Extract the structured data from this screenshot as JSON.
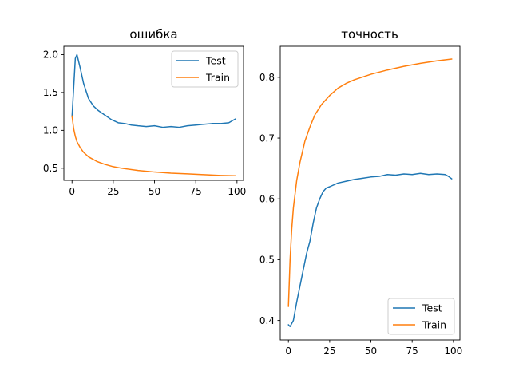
{
  "colors": {
    "test": "#1f77b4",
    "train": "#ff7f0e"
  },
  "chart_data": [
    {
      "type": "line",
      "title": "ошибка",
      "xlabel": "",
      "ylabel": "",
      "xlim": [
        -4.95,
        103.95
      ],
      "ylim": [
        0.34,
        2.11
      ],
      "xticks": [
        0,
        25,
        50,
        75,
        100
      ],
      "yticks": [
        0.5,
        1.0,
        1.5,
        2.0
      ],
      "xtick_labels": [
        "0",
        "25",
        "50",
        "75",
        "100"
      ],
      "ytick_labels": [
        "0.5",
        "1.0",
        "1.5",
        "2.0"
      ],
      "grid": false,
      "legend_placement": "upper right",
      "series": [
        {
          "name": "Test",
          "color": "#1f77b4",
          "x": [
            0,
            2,
            3,
            5,
            7,
            10,
            13,
            16,
            20,
            24,
            28,
            32,
            36,
            40,
            45,
            50,
            55,
            60,
            65,
            70,
            75,
            80,
            85,
            90,
            95,
            99
          ],
          "y": [
            1.18,
            1.95,
            2.0,
            1.82,
            1.62,
            1.42,
            1.32,
            1.26,
            1.2,
            1.14,
            1.1,
            1.09,
            1.07,
            1.06,
            1.05,
            1.06,
            1.04,
            1.05,
            1.04,
            1.06,
            1.07,
            1.08,
            1.09,
            1.09,
            1.1,
            1.15
          ]
        },
        {
          "name": "Train",
          "color": "#ff7f0e",
          "x": [
            0,
            1,
            2,
            3,
            5,
            7,
            10,
            15,
            20,
            25,
            30,
            40,
            50,
            60,
            70,
            80,
            90,
            99
          ],
          "y": [
            1.19,
            1.02,
            0.92,
            0.85,
            0.77,
            0.71,
            0.65,
            0.59,
            0.55,
            0.52,
            0.5,
            0.47,
            0.45,
            0.435,
            0.425,
            0.415,
            0.405,
            0.4
          ]
        }
      ]
    },
    {
      "type": "line",
      "title": "точность",
      "xlabel": "",
      "ylabel": "",
      "xlim": [
        -4.95,
        103.95
      ],
      "ylim": [
        0.368,
        0.851
      ],
      "xticks": [
        0,
        25,
        50,
        75,
        100
      ],
      "yticks": [
        0.4,
        0.5,
        0.6,
        0.7,
        0.8
      ],
      "xtick_labels": [
        "0",
        "25",
        "50",
        "75",
        "100"
      ],
      "ytick_labels": [
        "0.4",
        "0.5",
        "0.6",
        "0.7",
        "0.8"
      ],
      "grid": false,
      "legend_placement": "lower right",
      "series": [
        {
          "name": "Test",
          "color": "#1f77b4",
          "x": [
            0,
            1,
            3,
            5,
            8,
            11,
            13,
            15,
            17,
            19,
            21,
            23,
            25,
            30,
            35,
            40,
            45,
            50,
            55,
            60,
            65,
            70,
            75,
            80,
            85,
            90,
            95,
            97,
            99
          ],
          "y": [
            0.393,
            0.39,
            0.4,
            0.43,
            0.47,
            0.51,
            0.53,
            0.56,
            0.585,
            0.6,
            0.612,
            0.618,
            0.62,
            0.626,
            0.629,
            0.632,
            0.634,
            0.636,
            0.637,
            0.64,
            0.639,
            0.641,
            0.64,
            0.642,
            0.64,
            0.641,
            0.64,
            0.637,
            0.633
          ]
        },
        {
          "name": "Train",
          "color": "#ff7f0e",
          "x": [
            0,
            1,
            2,
            3,
            5,
            7,
            10,
            13,
            16,
            20,
            25,
            30,
            35,
            40,
            50,
            60,
            70,
            80,
            90,
            99
          ],
          "y": [
            0.423,
            0.5,
            0.55,
            0.585,
            0.63,
            0.66,
            0.695,
            0.718,
            0.738,
            0.755,
            0.77,
            0.782,
            0.79,
            0.796,
            0.805,
            0.812,
            0.818,
            0.823,
            0.827,
            0.83
          ]
        }
      ]
    }
  ]
}
